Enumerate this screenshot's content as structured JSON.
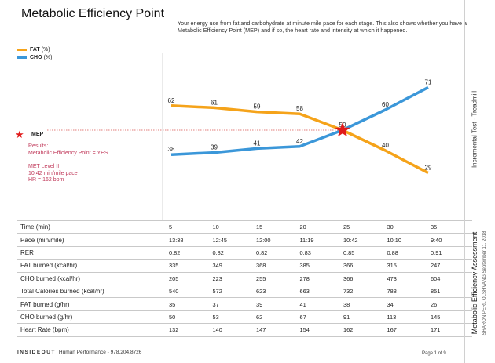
{
  "title": "Metabolic Efficiency Point",
  "description": "Your energy use from fat and carbohydrate at minute mile pace for each stage. This also shows whether you have a Metabolic Efficiency Point (MEP) and if so, the heart rate and intensity at which it happened.",
  "legend": {
    "fat": {
      "name": "FAT",
      "unit": "(%)",
      "color": "#f5a31a"
    },
    "cho": {
      "name": "CHO",
      "unit": "(%)",
      "color": "#3b97d9"
    }
  },
  "mep": {
    "label": "MEP",
    "results_line1": "Results:",
    "results_line2": "Metabolic Efficiency Point = YES",
    "met_level": "MET Level II",
    "pace": "10:42 min/mile pace",
    "hr": "HR = 162 bpm",
    "star_color": "#e11a1a",
    "text_color": "#c0395a"
  },
  "chart_data": {
    "type": "line",
    "x": [
      "5",
      "10",
      "15",
      "20",
      "25",
      "30",
      "35"
    ],
    "series": [
      {
        "name": "FAT",
        "values": [
          62,
          61,
          59,
          58,
          50,
          40,
          29
        ]
      },
      {
        "name": "CHO",
        "values": [
          38,
          39,
          41,
          42,
          50,
          60,
          71
        ]
      }
    ],
    "point_labels": {
      "FAT": [
        "62",
        "61",
        "59",
        "58",
        "50",
        "40",
        "29"
      ],
      "CHO": [
        "38",
        "39",
        "41",
        "42",
        "",
        "60",
        "71"
      ]
    },
    "mep_index": 4,
    "ylim": [
      20,
      80
    ],
    "grid": false
  },
  "table": {
    "rows": [
      {
        "label": "Time (min)",
        "values": [
          "5",
          "10",
          "15",
          "20",
          "25",
          "30",
          "35"
        ]
      },
      {
        "label": "Pace (min/mile)",
        "values": [
          "13:38",
          "12:45",
          "12:00",
          "11:19",
          "10:42",
          "10:10",
          "9:40"
        ]
      },
      {
        "label": "RER",
        "values": [
          "0.82",
          "0.82",
          "0.82",
          "0.83",
          "0.85",
          "0.88",
          "0.91"
        ]
      },
      {
        "label": "FAT burned (kcal/hr)",
        "values": [
          "335",
          "349",
          "368",
          "385",
          "366",
          "315",
          "247"
        ]
      },
      {
        "label": "CHO burned (kcal/hr)",
        "values": [
          "205",
          "223",
          "255",
          "278",
          "366",
          "473",
          "604"
        ]
      },
      {
        "label": "Total Calories burned (kcal/hr)",
        "values": [
          "540",
          "572",
          "623",
          "663",
          "732",
          "788",
          "851"
        ]
      },
      {
        "label": "FAT burned (g/hr)",
        "values": [
          "35",
          "37",
          "39",
          "41",
          "38",
          "34",
          "26"
        ]
      },
      {
        "label": "CHO burned (g/hr)",
        "values": [
          "50",
          "53",
          "62",
          "67",
          "91",
          "113",
          "145"
        ]
      },
      {
        "label": "Heart Rate (bpm)",
        "values": [
          "132",
          "140",
          "147",
          "154",
          "162",
          "167",
          "171"
        ]
      }
    ]
  },
  "sidebar": {
    "test_type": "Incremental Test - Treadmill",
    "assessment": "Metabolic Efficiency Assessment",
    "client_date": "SHARON PERL OLSHVANG  September 11, 2018"
  },
  "footer": {
    "brand": "INSIDEOUT",
    "text": "Human Performance - 978.204.8726",
    "page": "Page 1 of 9"
  }
}
